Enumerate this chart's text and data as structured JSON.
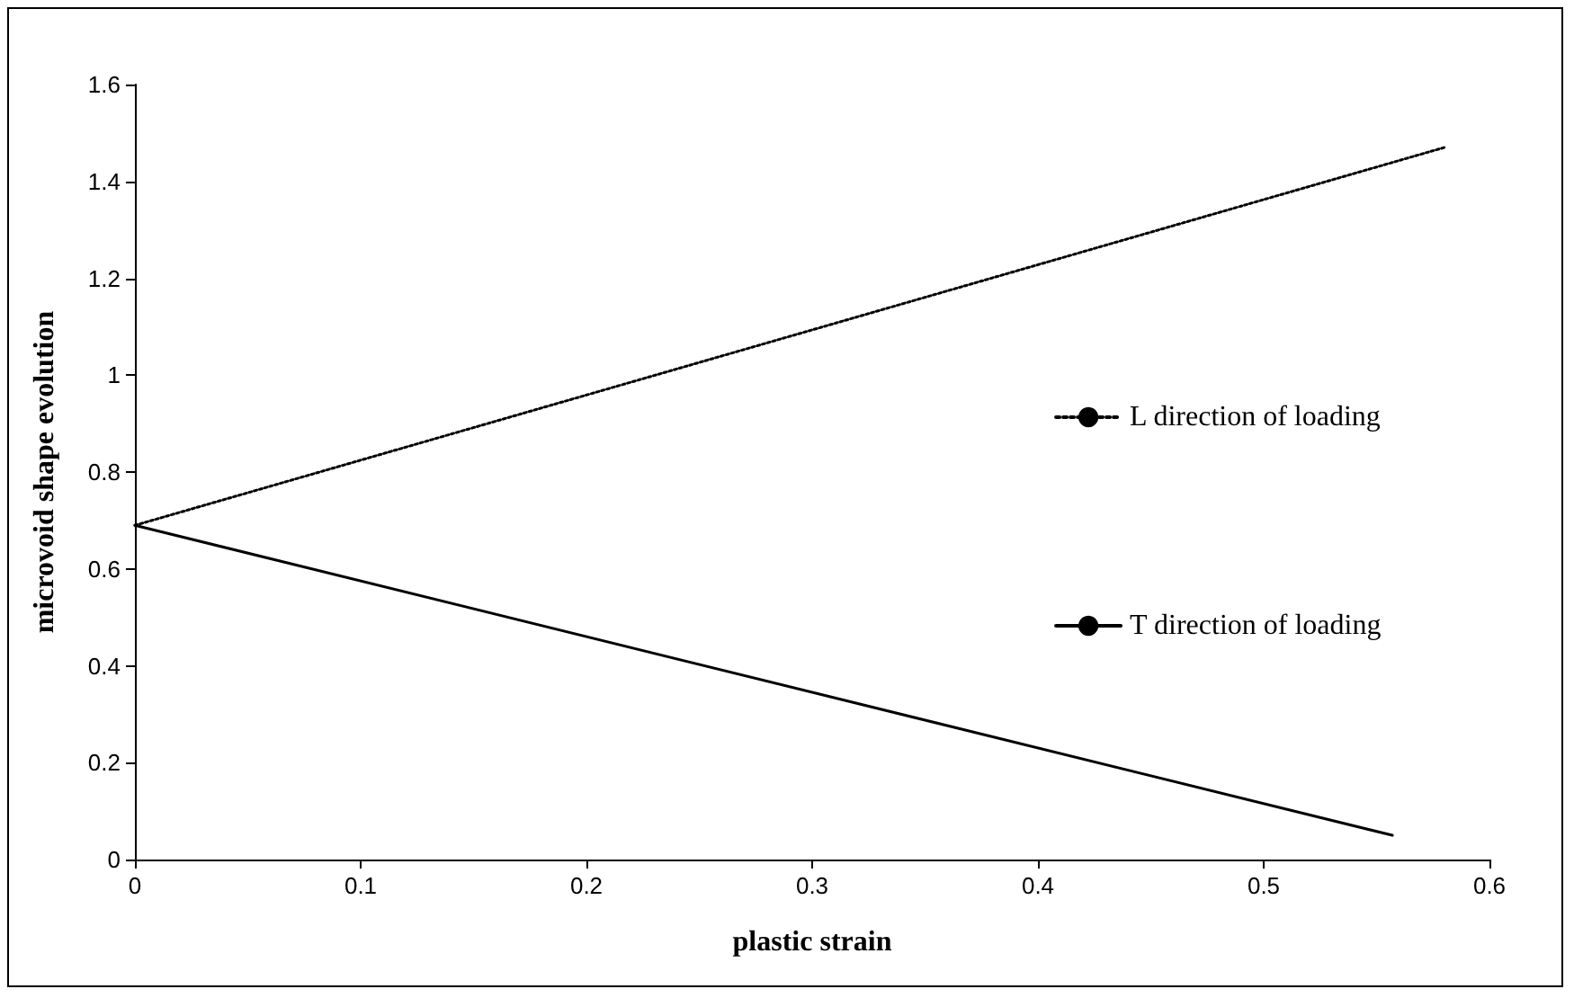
{
  "chart_data": {
    "type": "line",
    "xlabel": "plastic strain",
    "ylabel": "microvoid shape evolution",
    "xlim": [
      0,
      0.6
    ],
    "xticks": [
      0,
      0.1,
      0.2,
      0.3,
      0.4,
      0.5,
      0.6
    ],
    "ylim": [
      0,
      1.6
    ],
    "yticks": [
      0,
      0.2,
      0.4,
      0.6,
      0.8,
      1,
      1.2,
      1.4,
      1.6
    ],
    "series": [
      {
        "name": "L direction of loading",
        "color": "#000000",
        "line_style": "dotted",
        "x": [
          0,
          0.58
        ],
        "values": [
          0.69,
          1.47
        ]
      },
      {
        "name": "T direction of loading",
        "color": "#000000",
        "line_style": "solid",
        "x": [
          0,
          0.557
        ],
        "values": [
          0.69,
          0.05
        ]
      }
    ],
    "grid": false,
    "legend": "right",
    "marker": "none"
  }
}
